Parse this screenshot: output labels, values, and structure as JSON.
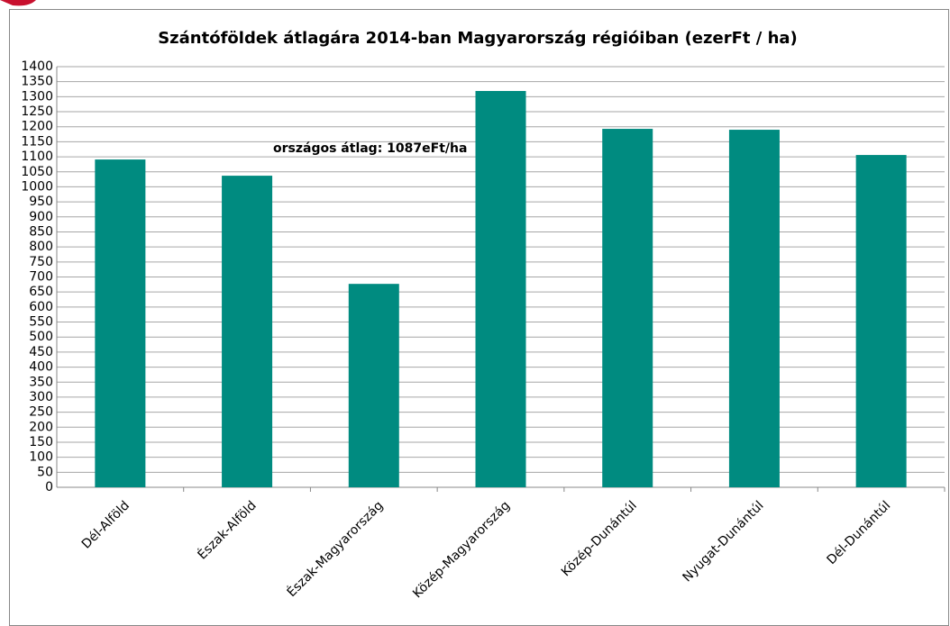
{
  "chart_data": {
    "type": "bar",
    "title": "Szántóföldek átlagára 2014-ban Magyarország régióiban (ezerFt / ha)",
    "annotation": "országos átlag: 1087eFt/ha",
    "categories": [
      "Dél-Alföld",
      "Észak-Alföld",
      "Észak-Magyarország",
      "Közép-Magyarország",
      "Közép-Dunántúl",
      "Nyugat-Dunántúl",
      "Dél-Dunántúl"
    ],
    "values": [
      1091,
      1037,
      677,
      1319,
      1193,
      1190,
      1106
    ],
    "color": "#008b80",
    "ylim": [
      0,
      1400
    ],
    "yticks": [
      0,
      50,
      100,
      150,
      200,
      250,
      300,
      350,
      400,
      450,
      500,
      550,
      600,
      650,
      700,
      750,
      800,
      850,
      900,
      950,
      1000,
      1050,
      1100,
      1150,
      1200,
      1250,
      1300,
      1350,
      1400
    ],
    "grid": true
  }
}
